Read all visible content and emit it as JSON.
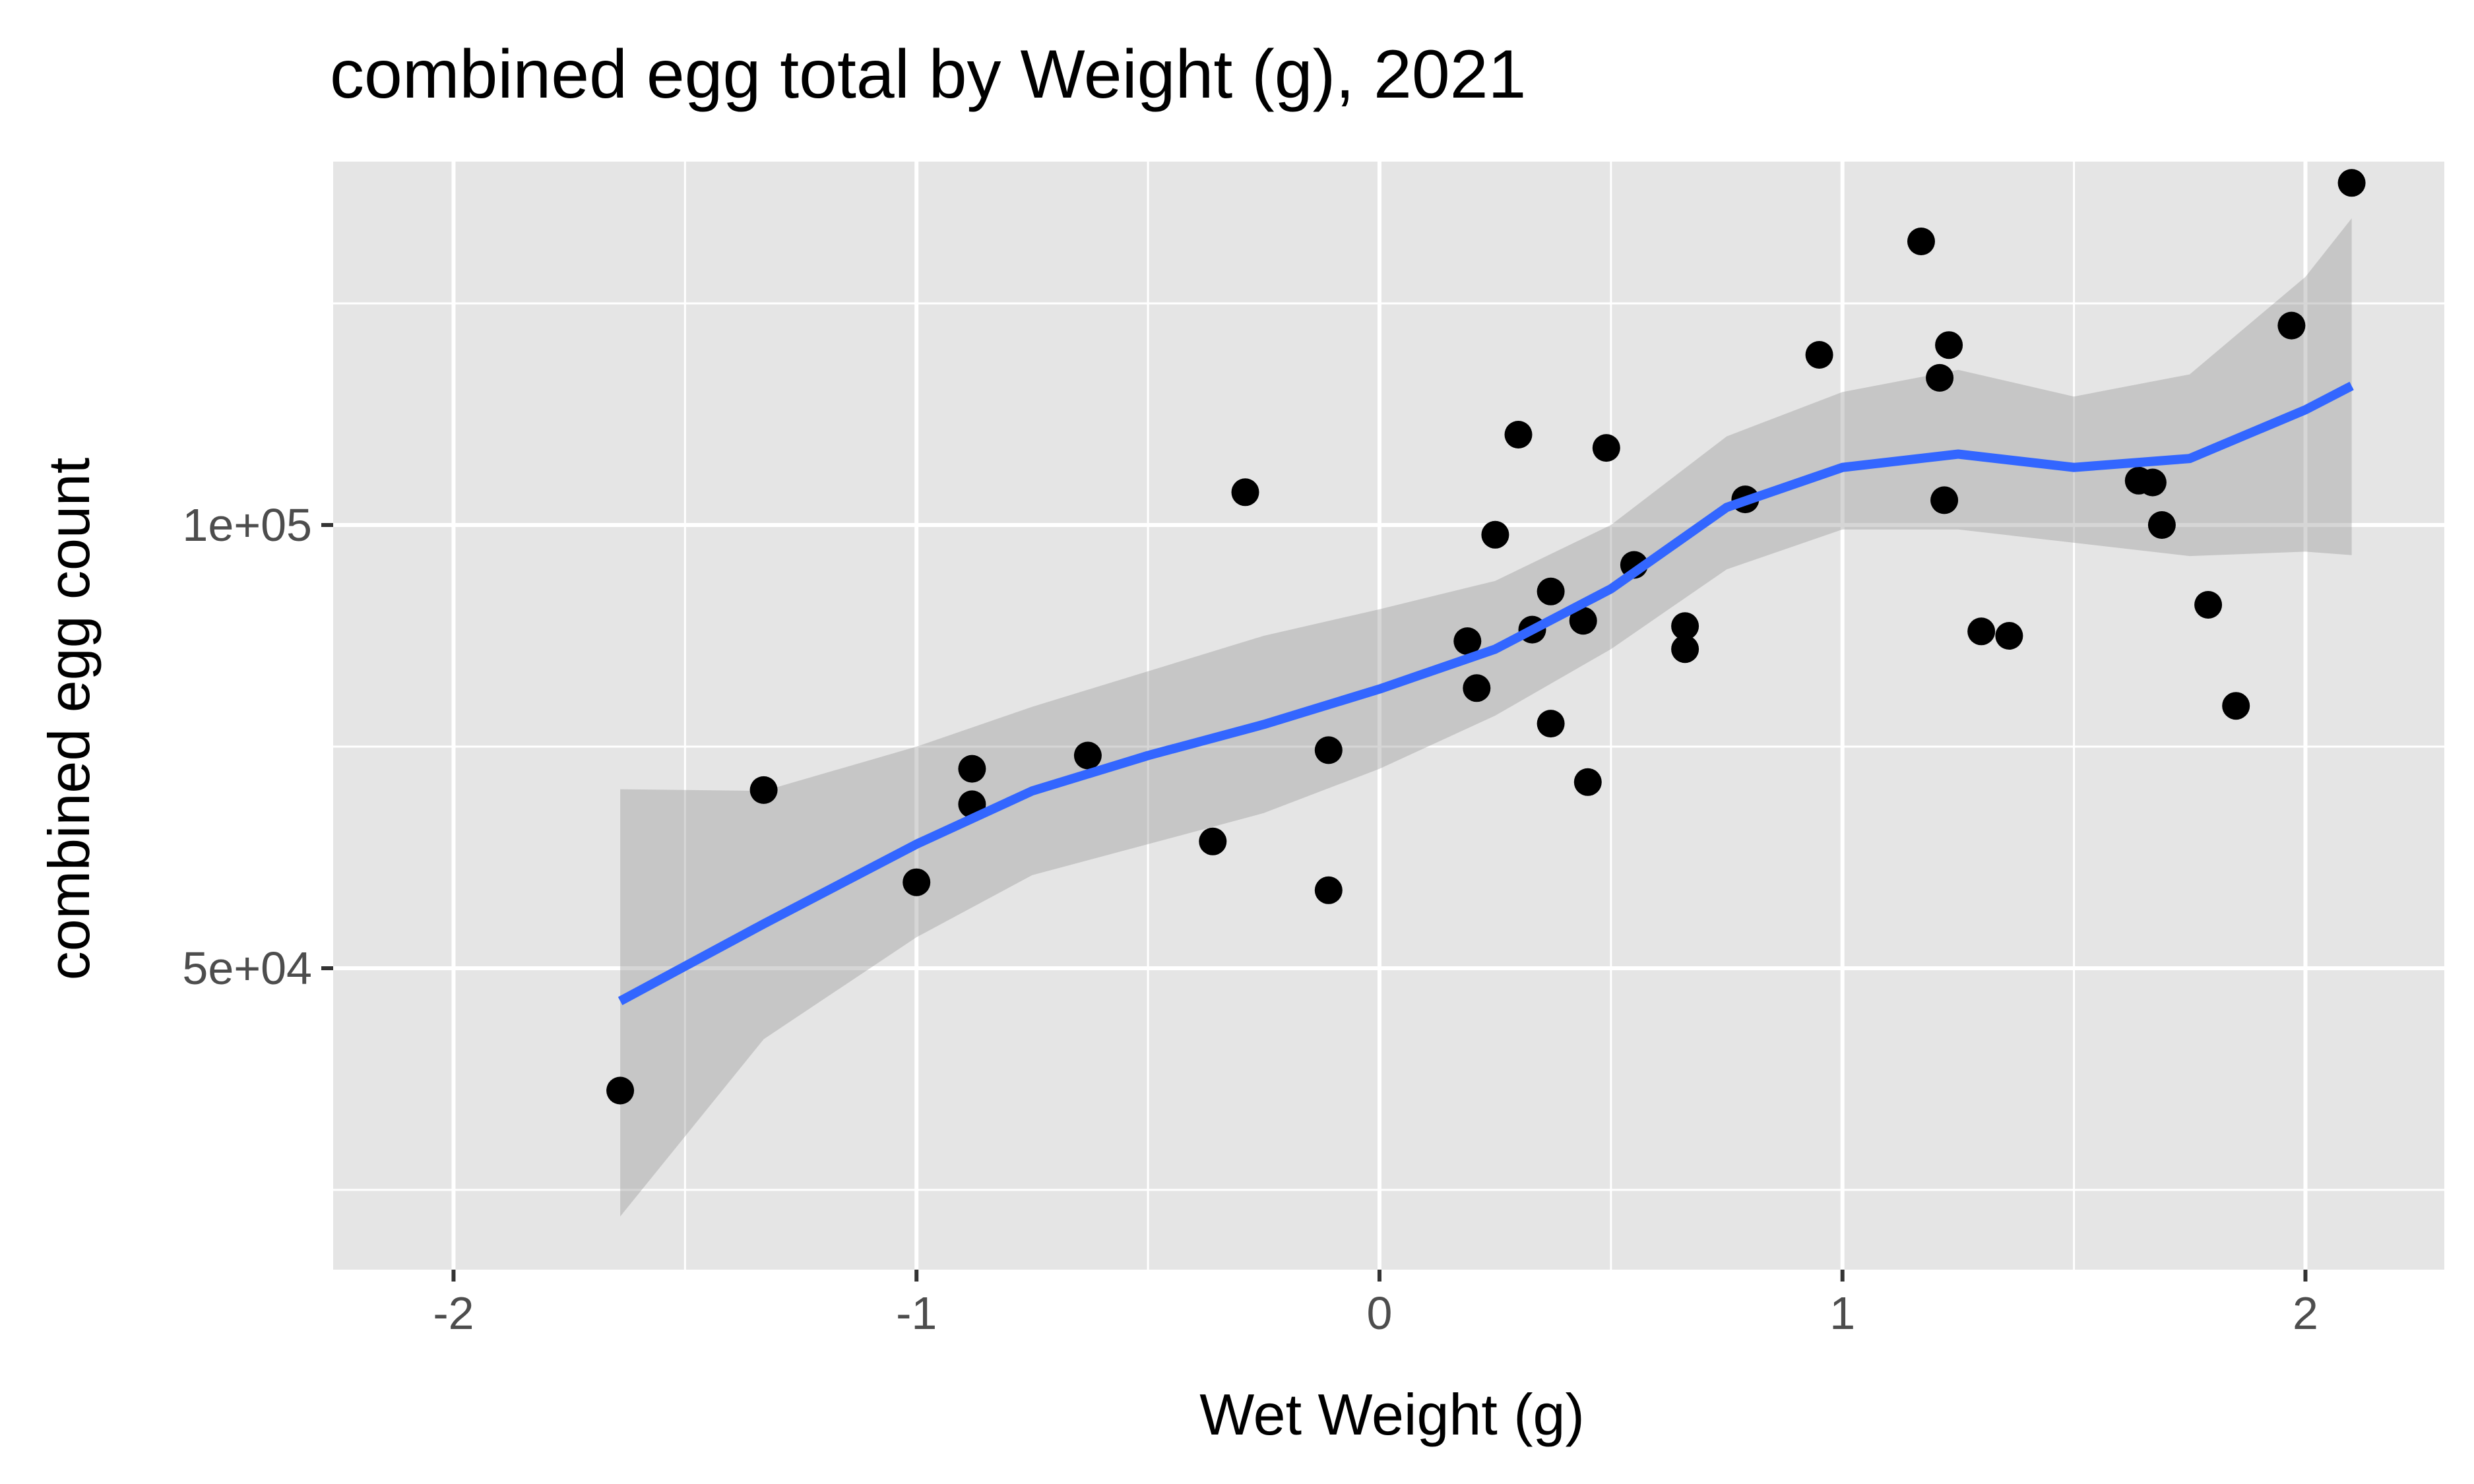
{
  "chart_data": {
    "type": "scatter",
    "title": "combined egg total by Weight (g), 2021",
    "xlabel": "Wet Weight (g)",
    "ylabel": "combined egg count",
    "xlim": [
      -2.26,
      2.3
    ],
    "ylim": [
      16000,
      141000
    ],
    "x_ticks": [
      -2,
      -1,
      0,
      1,
      2
    ],
    "x_tick_labels": [
      "-2",
      "-1",
      "0",
      "1",
      "2"
    ],
    "y_ticks": [
      50000,
      100000
    ],
    "y_tick_labels": [
      "5e+04",
      "1e+05"
    ],
    "grid": true,
    "legend": "none",
    "colors": {
      "panel_background": "#e5e5e5",
      "grid": "#ffffff",
      "points": "#000000",
      "smooth_line": "#3366ff",
      "confidence_band": "#999999"
    },
    "points": [
      {
        "x": -1.64,
        "y": 36200
      },
      {
        "x": -1.33,
        "y": 70100
      },
      {
        "x": -1.0,
        "y": 59700
      },
      {
        "x": -0.88,
        "y": 72500
      },
      {
        "x": -0.88,
        "y": 68500
      },
      {
        "x": -0.63,
        "y": 74000
      },
      {
        "x": -0.36,
        "y": 64300
      },
      {
        "x": -0.29,
        "y": 103700
      },
      {
        "x": -0.11,
        "y": 74600
      },
      {
        "x": -0.11,
        "y": 58800
      },
      {
        "x": 0.19,
        "y": 86900
      },
      {
        "x": 0.21,
        "y": 81600
      },
      {
        "x": 0.25,
        "y": 98900
      },
      {
        "x": 0.3,
        "y": 110200
      },
      {
        "x": 0.33,
        "y": 88200
      },
      {
        "x": 0.37,
        "y": 92500
      },
      {
        "x": 0.37,
        "y": 77600
      },
      {
        "x": 0.44,
        "y": 89200
      },
      {
        "x": 0.45,
        "y": 71000
      },
      {
        "x": 0.49,
        "y": 108700
      },
      {
        "x": 0.55,
        "y": 95500
      },
      {
        "x": 0.66,
        "y": 88600
      },
      {
        "x": 0.66,
        "y": 86000
      },
      {
        "x": 0.79,
        "y": 102900
      },
      {
        "x": 0.95,
        "y": 119200
      },
      {
        "x": 1.17,
        "y": 132000
      },
      {
        "x": 1.21,
        "y": 116600
      },
      {
        "x": 1.22,
        "y": 102800
      },
      {
        "x": 1.23,
        "y": 120300
      },
      {
        "x": 1.3,
        "y": 88000
      },
      {
        "x": 1.36,
        "y": 87500
      },
      {
        "x": 1.64,
        "y": 105000
      },
      {
        "x": 1.67,
        "y": 104800
      },
      {
        "x": 1.69,
        "y": 100000
      },
      {
        "x": 1.79,
        "y": 91000
      },
      {
        "x": 1.85,
        "y": 79600
      },
      {
        "x": 1.97,
        "y": 122500
      },
      {
        "x": 2.1,
        "y": 138600
      }
    ],
    "smooth": {
      "x": [
        -1.64,
        -1.33,
        -1.0,
        -0.75,
        -0.5,
        -0.25,
        0.0,
        0.25,
        0.5,
        0.75,
        1.0,
        1.25,
        1.5,
        1.75,
        2.0,
        2.1
      ],
      "y": [
        46300,
        55000,
        64000,
        70000,
        74000,
        77500,
        81500,
        86000,
        92800,
        102000,
        106500,
        108000,
        106500,
        107500,
        113000,
        115700
      ],
      "lower": [
        22000,
        42000,
        53500,
        60500,
        64000,
        67500,
        72500,
        78500,
        86000,
        95000,
        99500,
        99500,
        98000,
        96500,
        97000,
        96600
      ],
      "upper": [
        70200,
        70000,
        75000,
        79500,
        83500,
        87500,
        90500,
        93700,
        100000,
        110000,
        115000,
        117500,
        114500,
        117000,
        128000,
        134600
      ]
    }
  }
}
